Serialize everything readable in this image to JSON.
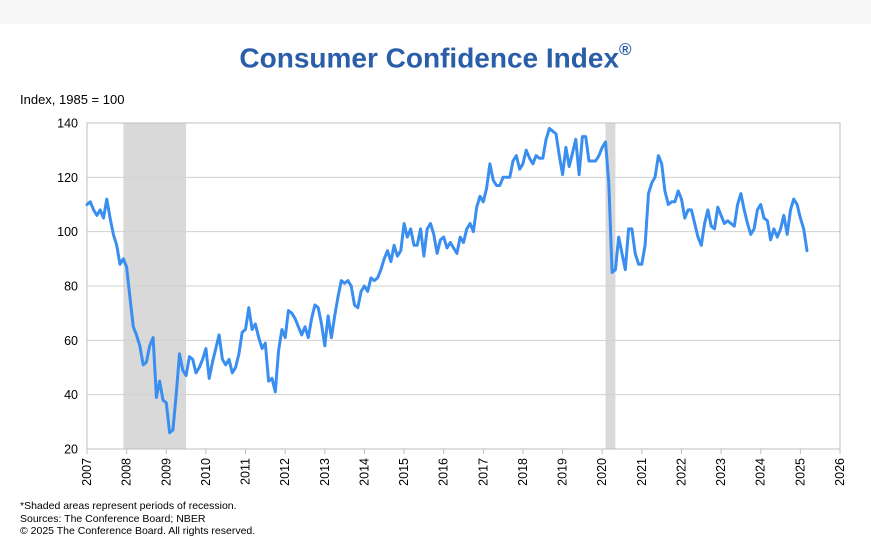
{
  "chart_data": {
    "type": "line",
    "title": "Consumer Confidence Index",
    "title_mark": "®",
    "ylabel": "Index, 1985 = 100",
    "ylim": [
      20,
      140
    ],
    "yticks": [
      "20",
      "40",
      "60",
      "80",
      "100",
      "120",
      "140"
    ],
    "xlim": [
      2007,
      2026
    ],
    "xticks": [
      "2007",
      "2008",
      "2009",
      "2010",
      "2011",
      "2012",
      "2013",
      "2014",
      "2015",
      "2016",
      "2017",
      "2018",
      "2019",
      "2020",
      "2021",
      "2022",
      "2023",
      "2024",
      "2025",
      "2026"
    ],
    "grid": "horizontal",
    "line_color": "#3a8ef0",
    "recession_color": "#d9d9d9",
    "recessions": [
      [
        2007.917,
        2009.5
      ],
      [
        2020.083,
        2020.333
      ]
    ],
    "series": [
      {
        "values": [
          [
            2007.0,
            110
          ],
          [
            2007.083,
            111
          ],
          [
            2007.167,
            108
          ],
          [
            2007.25,
            106
          ],
          [
            2007.333,
            108
          ],
          [
            2007.417,
            105
          ],
          [
            2007.5,
            112
          ],
          [
            2007.583,
            105
          ],
          [
            2007.667,
            99
          ],
          [
            2007.75,
            95
          ],
          [
            2007.833,
            88
          ],
          [
            2007.917,
            90
          ],
          [
            2008.0,
            87
          ],
          [
            2008.083,
            76
          ],
          [
            2008.167,
            65
          ],
          [
            2008.25,
            62
          ],
          [
            2008.333,
            58
          ],
          [
            2008.417,
            51
          ],
          [
            2008.5,
            52
          ],
          [
            2008.583,
            58
          ],
          [
            2008.667,
            61
          ],
          [
            2008.75,
            39
          ],
          [
            2008.833,
            45
          ],
          [
            2008.917,
            38
          ],
          [
            2009.0,
            37
          ],
          [
            2009.083,
            26
          ],
          [
            2009.167,
            27
          ],
          [
            2009.25,
            40
          ],
          [
            2009.333,
            55
          ],
          [
            2009.417,
            49
          ],
          [
            2009.5,
            47
          ],
          [
            2009.583,
            54
          ],
          [
            2009.667,
            53
          ],
          [
            2009.75,
            48
          ],
          [
            2009.833,
            50
          ],
          [
            2009.917,
            53
          ],
          [
            2010.0,
            57
          ],
          [
            2010.083,
            46
          ],
          [
            2010.167,
            52
          ],
          [
            2010.25,
            57
          ],
          [
            2010.333,
            62
          ],
          [
            2010.417,
            53
          ],
          [
            2010.5,
            51
          ],
          [
            2010.583,
            53
          ],
          [
            2010.667,
            48
          ],
          [
            2010.75,
            50
          ],
          [
            2010.833,
            55
          ],
          [
            2010.917,
            63
          ],
          [
            2011.0,
            64
          ],
          [
            2011.083,
            72
          ],
          [
            2011.167,
            64
          ],
          [
            2011.25,
            66
          ],
          [
            2011.333,
            61
          ],
          [
            2011.417,
            57
          ],
          [
            2011.5,
            59
          ],
          [
            2011.583,
            45
          ],
          [
            2011.667,
            46
          ],
          [
            2011.75,
            41
          ],
          [
            2011.833,
            56
          ],
          [
            2011.917,
            64
          ],
          [
            2012.0,
            61
          ],
          [
            2012.083,
            71
          ],
          [
            2012.167,
            70
          ],
          [
            2012.25,
            68
          ],
          [
            2012.333,
            65
          ],
          [
            2012.417,
            62
          ],
          [
            2012.5,
            65
          ],
          [
            2012.583,
            61
          ],
          [
            2012.667,
            68
          ],
          [
            2012.75,
            73
          ],
          [
            2012.833,
            72
          ],
          [
            2012.917,
            66
          ],
          [
            2013.0,
            58
          ],
          [
            2013.083,
            69
          ],
          [
            2013.167,
            61
          ],
          [
            2013.25,
            69
          ],
          [
            2013.333,
            76
          ],
          [
            2013.417,
            82
          ],
          [
            2013.5,
            81
          ],
          [
            2013.583,
            82
          ],
          [
            2013.667,
            80
          ],
          [
            2013.75,
            73
          ],
          [
            2013.833,
            72
          ],
          [
            2013.917,
            78
          ],
          [
            2014.0,
            80
          ],
          [
            2014.083,
            78
          ],
          [
            2014.167,
            83
          ],
          [
            2014.25,
            82
          ],
          [
            2014.333,
            83
          ],
          [
            2014.417,
            86
          ],
          [
            2014.5,
            90
          ],
          [
            2014.583,
            93
          ],
          [
            2014.667,
            89
          ],
          [
            2014.75,
            95
          ],
          [
            2014.833,
            91
          ],
          [
            2014.917,
            93
          ],
          [
            2015.0,
            103
          ],
          [
            2015.083,
            98
          ],
          [
            2015.167,
            101
          ],
          [
            2015.25,
            95
          ],
          [
            2015.333,
            95
          ],
          [
            2015.417,
            101
          ],
          [
            2015.5,
            91
          ],
          [
            2015.583,
            101
          ],
          [
            2015.667,
            103
          ],
          [
            2015.75,
            99
          ],
          [
            2015.833,
            92
          ],
          [
            2015.917,
            97
          ],
          [
            2016.0,
            98
          ],
          [
            2016.083,
            94
          ],
          [
            2016.167,
            96
          ],
          [
            2016.25,
            94
          ],
          [
            2016.333,
            92
          ],
          [
            2016.417,
            98
          ],
          [
            2016.5,
            96
          ],
          [
            2016.583,
            101
          ],
          [
            2016.667,
            103
          ],
          [
            2016.75,
            100
          ],
          [
            2016.833,
            109
          ],
          [
            2016.917,
            113
          ],
          [
            2017.0,
            111
          ],
          [
            2017.083,
            116
          ],
          [
            2017.167,
            125
          ],
          [
            2017.25,
            119
          ],
          [
            2017.333,
            117
          ],
          [
            2017.417,
            117
          ],
          [
            2017.5,
            120
          ],
          [
            2017.583,
            120
          ],
          [
            2017.667,
            120
          ],
          [
            2017.75,
            126
          ],
          [
            2017.833,
            128
          ],
          [
            2017.917,
            123
          ],
          [
            2018.0,
            125
          ],
          [
            2018.083,
            130
          ],
          [
            2018.167,
            127
          ],
          [
            2018.25,
            125
          ],
          [
            2018.333,
            128
          ],
          [
            2018.417,
            127
          ],
          [
            2018.5,
            127
          ],
          [
            2018.583,
            134
          ],
          [
            2018.667,
            138
          ],
          [
            2018.75,
            137
          ],
          [
            2018.833,
            136
          ],
          [
            2018.917,
            128
          ],
          [
            2019.0,
            121
          ],
          [
            2019.083,
            131
          ],
          [
            2019.167,
            124
          ],
          [
            2019.25,
            129
          ],
          [
            2019.333,
            134
          ],
          [
            2019.417,
            121
          ],
          [
            2019.5,
            135
          ],
          [
            2019.583,
            135
          ],
          [
            2019.667,
            126
          ],
          [
            2019.75,
            126
          ],
          [
            2019.833,
            126
          ],
          [
            2019.917,
            128
          ],
          [
            2020.0,
            131
          ],
          [
            2020.083,
            133
          ],
          [
            2020.167,
            118
          ],
          [
            2020.25,
            85
          ],
          [
            2020.333,
            86
          ],
          [
            2020.417,
            98
          ],
          [
            2020.5,
            92
          ],
          [
            2020.583,
            86
          ],
          [
            2020.667,
            101
          ],
          [
            2020.75,
            101
          ],
          [
            2020.833,
            92
          ],
          [
            2020.917,
            88
          ],
          [
            2021.0,
            88
          ],
          [
            2021.083,
            95
          ],
          [
            2021.167,
            114
          ],
          [
            2021.25,
            118
          ],
          [
            2021.333,
            120
          ],
          [
            2021.417,
            128
          ],
          [
            2021.5,
            125
          ],
          [
            2021.583,
            115
          ],
          [
            2021.667,
            110
          ],
          [
            2021.75,
            111
          ],
          [
            2021.833,
            111
          ],
          [
            2021.917,
            115
          ],
          [
            2022.0,
            112
          ],
          [
            2022.083,
            105
          ],
          [
            2022.167,
            108
          ],
          [
            2022.25,
            108
          ],
          [
            2022.333,
            103
          ],
          [
            2022.417,
            98
          ],
          [
            2022.5,
            95
          ],
          [
            2022.583,
            103
          ],
          [
            2022.667,
            108
          ],
          [
            2022.75,
            102
          ],
          [
            2022.833,
            101
          ],
          [
            2022.917,
            109
          ],
          [
            2023.0,
            106
          ],
          [
            2023.083,
            103
          ],
          [
            2023.167,
            104
          ],
          [
            2023.25,
            103
          ],
          [
            2023.333,
            102
          ],
          [
            2023.417,
            110
          ],
          [
            2023.5,
            114
          ],
          [
            2023.583,
            108
          ],
          [
            2023.667,
            103
          ],
          [
            2023.75,
            99
          ],
          [
            2023.833,
            101
          ],
          [
            2023.917,
            108
          ],
          [
            2024.0,
            110
          ],
          [
            2024.083,
            105
          ],
          [
            2024.167,
            104
          ],
          [
            2024.25,
            97
          ],
          [
            2024.333,
            101
          ],
          [
            2024.417,
            98
          ],
          [
            2024.5,
            101
          ],
          [
            2024.583,
            106
          ],
          [
            2024.667,
            99
          ],
          [
            2024.75,
            108
          ],
          [
            2024.833,
            112
          ],
          [
            2024.917,
            110
          ],
          [
            2025.0,
            105
          ],
          [
            2025.083,
            101
          ],
          [
            2025.167,
            93
          ]
        ]
      }
    ],
    "notes": [
      "*Shaded areas represent periods of recession.",
      "Sources: The Conference Board;  NBER",
      "© 2025 The Conference Board. All rights reserved."
    ]
  }
}
